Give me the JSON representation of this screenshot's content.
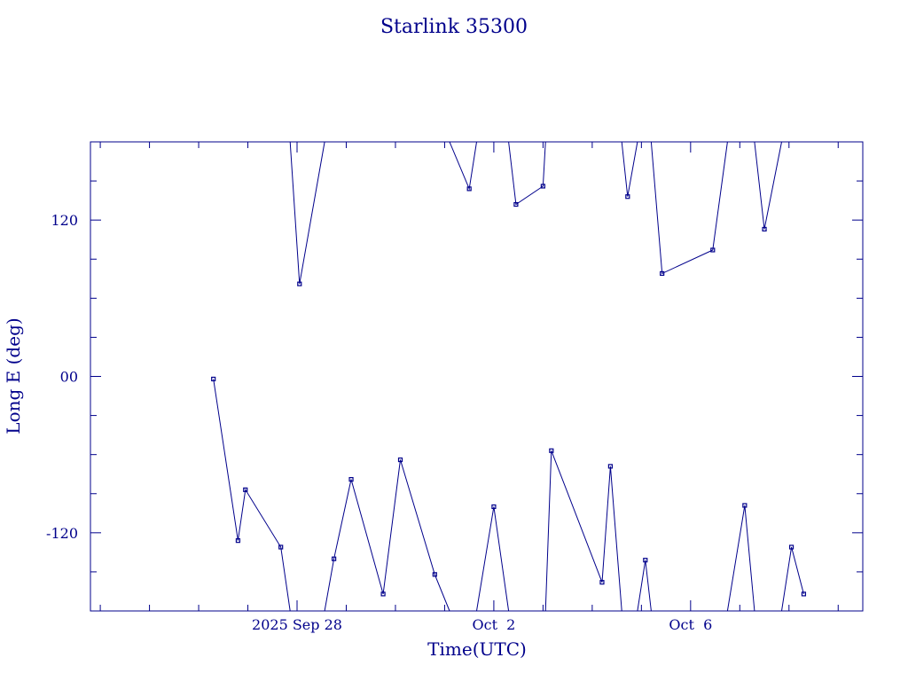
{
  "chart_data": {
    "type": "line",
    "title": "Starlink 35300",
    "xlabel": "Time(UTC)",
    "ylabel": "Long E (deg)",
    "ylim": [
      -180,
      180
    ],
    "yticks": [
      {
        "value": 120,
        "label": "120"
      },
      {
        "value": 0,
        "label": "00"
      },
      {
        "value": -120,
        "label": "-120"
      }
    ],
    "xlim_days": [
      -4.2,
      11.5
    ],
    "xticks": [
      {
        "day": 0,
        "label": "2025 Sep 28"
      },
      {
        "day": 4,
        "label": "Oct  2"
      },
      {
        "day": 8,
        "label": "Oct  6"
      }
    ],
    "marker": "square",
    "grid": false,
    "color": "#00008b",
    "series": [
      {
        "points": [
          {
            "t": -1.7,
            "lon": -2
          },
          {
            "t": -1.2,
            "lon": -126
          },
          {
            "t": -1.05,
            "lon": -87
          },
          {
            "t": -0.33,
            "lon": -131
          },
          {
            "t": -0.14,
            "lon": -180
          },
          {
            "t": -0.14,
            "lon": 180
          },
          {
            "t": 0.05,
            "lon": 71
          },
          {
            "t": 0.56,
            "lon": 180
          },
          {
            "t": 0.56,
            "lon": -180
          },
          {
            "t": 0.75,
            "lon": -140
          },
          {
            "t": 1.1,
            "lon": -79
          },
          {
            "t": 1.75,
            "lon": -167
          },
          {
            "t": 2.1,
            "lon": -64
          },
          {
            "t": 2.8,
            "lon": -152
          },
          {
            "t": 3.1,
            "lon": -180
          },
          {
            "t": 3.1,
            "lon": 180
          },
          {
            "t": 3.5,
            "lon": 144
          },
          {
            "t": 3.65,
            "lon": 180
          },
          {
            "t": 3.65,
            "lon": -180
          },
          {
            "t": 4.0,
            "lon": -100
          },
          {
            "t": 4.3,
            "lon": -180
          },
          {
            "t": 4.3,
            "lon": 180
          },
          {
            "t": 4.45,
            "lon": 132
          },
          {
            "t": 5.0,
            "lon": 146
          },
          {
            "t": 5.05,
            "lon": 180
          },
          {
            "t": 5.05,
            "lon": -180
          },
          {
            "t": 5.17,
            "lon": -57
          },
          {
            "t": 6.2,
            "lon": -158
          },
          {
            "t": 6.37,
            "lon": -69
          },
          {
            "t": 6.6,
            "lon": -180
          },
          {
            "t": 6.6,
            "lon": 180
          },
          {
            "t": 6.72,
            "lon": 138
          },
          {
            "t": 6.92,
            "lon": 180
          },
          {
            "t": 6.92,
            "lon": -180
          },
          {
            "t": 7.08,
            "lon": -141
          },
          {
            "t": 7.2,
            "lon": -180
          },
          {
            "t": 7.2,
            "lon": 180
          },
          {
            "t": 7.42,
            "lon": 79
          },
          {
            "t": 8.45,
            "lon": 97
          },
          {
            "t": 8.75,
            "lon": 180
          },
          {
            "t": 8.75,
            "lon": -180
          },
          {
            "t": 9.1,
            "lon": -99
          },
          {
            "t": 9.3,
            "lon": -180
          },
          {
            "t": 9.3,
            "lon": 180
          },
          {
            "t": 9.5,
            "lon": 113
          },
          {
            "t": 9.85,
            "lon": 180
          },
          {
            "t": 9.85,
            "lon": -180
          },
          {
            "t": 10.05,
            "lon": -131
          },
          {
            "t": 10.3,
            "lon": -167
          }
        ]
      }
    ]
  }
}
